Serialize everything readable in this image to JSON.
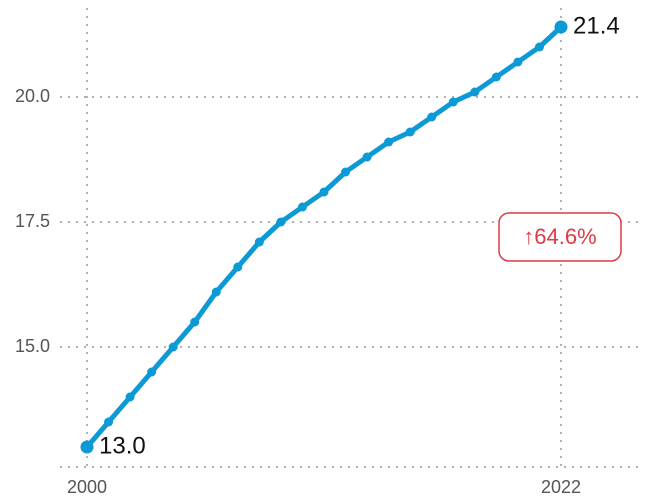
{
  "chart_data": {
    "type": "line",
    "x": [
      2000,
      2001,
      2002,
      2003,
      2004,
      2005,
      2006,
      2007,
      2008,
      2009,
      2010,
      2011,
      2012,
      2013,
      2014,
      2015,
      2016,
      2017,
      2018,
      2019,
      2020,
      2021,
      2022
    ],
    "series": [
      {
        "color": "#0b9ad6",
        "values": [
          13.0,
          13.5,
          14.0,
          14.5,
          15.0,
          15.5,
          16.1,
          16.6,
          17.1,
          17.5,
          17.8,
          18.1,
          18.5,
          18.8,
          19.1,
          19.3,
          19.6,
          19.9,
          20.1,
          20.4,
          20.7,
          21.0,
          21.4
        ],
        "value_labels": [
          "13.0",
          null,
          null,
          null,
          null,
          null,
          null,
          null,
          null,
          null,
          null,
          null,
          null,
          null,
          null,
          null,
          null,
          null,
          null,
          null,
          null,
          null,
          "21.4"
        ]
      }
    ],
    "xlim": [
      2000,
      2022
    ],
    "xticks": [
      2000,
      2022
    ],
    "ylim": [
      12.6,
      22
    ],
    "yticks": [
      {
        "value": 15,
        "label": "15.0"
      },
      {
        "value": 17.5,
        "label": "17.5"
      },
      {
        "value": 20,
        "label": "20.0"
      }
    ],
    "grid": true,
    "annotation": "↑64.6%",
    "annotation_color": "#e03a45"
  }
}
